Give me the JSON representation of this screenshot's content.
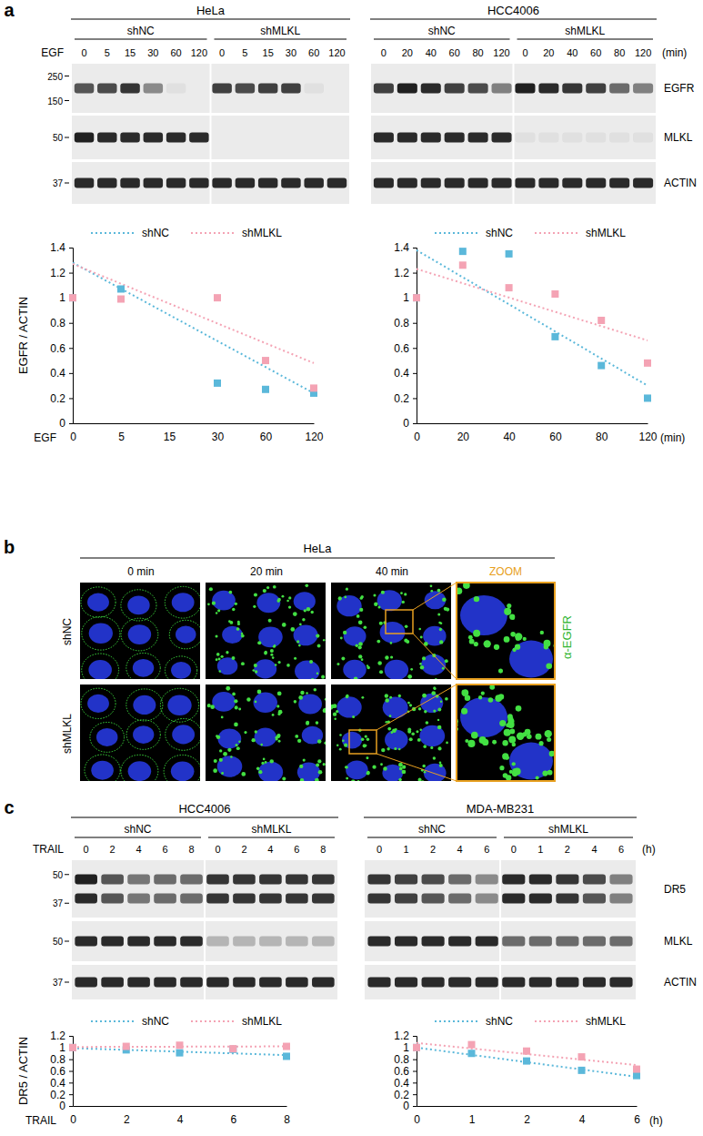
{
  "chart_data": [
    {
      "type": "scatter",
      "categories": [
        "0",
        "5",
        "15",
        "30",
        "60",
        "120"
      ],
      "x_label_start": "EGF",
      "ylabel": "EGFR / ACTIN",
      "ylim": [
        0,
        1.4
      ],
      "yticks": [
        0,
        0.2,
        0.4,
        0.6,
        0.8,
        1,
        1.2,
        1.4
      ],
      "legend": "top",
      "series": [
        {
          "name": "shNC",
          "color": "#5bb8da",
          "marker": "square",
          "line_style": "dotted",
          "values": [
            1,
            1.07,
            null,
            0.32,
            0.27,
            0.24
          ],
          "trend": [
            1.28,
            0.24
          ]
        },
        {
          "name": "shMLKL",
          "color": "#f4a3b4",
          "marker": "square",
          "line_style": "dotted",
          "values": [
            1,
            0.99,
            null,
            1,
            0.5,
            0.28
          ],
          "trend": [
            1.27,
            0.48
          ]
        }
      ]
    },
    {
      "type": "scatter",
      "categories": [
        "0",
        "20",
        "40",
        "60",
        "80",
        "120"
      ],
      "x_label_end": "(min)",
      "ylim": [
        0,
        1.4
      ],
      "yticks": [
        0,
        0.2,
        0.4,
        0.6,
        0.8,
        1,
        1.2,
        1.4
      ],
      "legend": "top",
      "series": [
        {
          "name": "shNC",
          "color": "#5bb8da",
          "marker": "square",
          "line_style": "dotted",
          "values": [
            1,
            1.37,
            1.35,
            0.69,
            0.46,
            0.2
          ],
          "trend": [
            1.38,
            0.3
          ]
        },
        {
          "name": "shMLKL",
          "color": "#f4a3b4",
          "marker": "square",
          "line_style": "dotted",
          "values": [
            1,
            1.26,
            1.08,
            1.03,
            0.82,
            0.48
          ],
          "trend": [
            1.23,
            0.66
          ]
        }
      ]
    },
    {
      "type": "scatter",
      "categories": [
        "0",
        "2",
        "4",
        "6",
        "8"
      ],
      "x_label_start": "TRAIL",
      "ylabel": "DR5 / ACTIN",
      "ylim": [
        0,
        1.2
      ],
      "yticks": [
        0,
        0.2,
        0.4,
        0.6,
        0.8,
        1,
        1.2
      ],
      "legend": "top",
      "series": [
        {
          "name": "shNC",
          "color": "#5bb8da",
          "marker": "square",
          "line_style": "dotted",
          "values": [
            1,
            0.96,
            0.91,
            0.97,
            0.85
          ],
          "trend": [
            0.99,
            0.87
          ]
        },
        {
          "name": "shMLKL",
          "color": "#f4a3b4",
          "marker": "square",
          "line_style": "dotted",
          "values": [
            1,
            1.02,
            1.04,
            0.98,
            1.02
          ],
          "trend": [
            1.01,
            1.02
          ]
        }
      ]
    },
    {
      "type": "scatter",
      "categories": [
        "0",
        "1",
        "2",
        "4",
        "6"
      ],
      "x_label_end": "(h)",
      "ylim": [
        0,
        1.2
      ],
      "yticks": [
        0,
        0.2,
        0.4,
        0.6,
        0.8,
        1,
        1.2
      ],
      "legend": "top",
      "series": [
        {
          "name": "shNC",
          "color": "#5bb8da",
          "marker": "square",
          "line_style": "dotted",
          "values": [
            1,
            0.9,
            0.77,
            0.61,
            0.52
          ],
          "trend": [
            1.0,
            0.5
          ]
        },
        {
          "name": "shMLKL",
          "color": "#f4a3b4",
          "marker": "square",
          "line_style": "dotted",
          "values": [
            1,
            1.05,
            0.94,
            0.84,
            0.63
          ],
          "trend": [
            1.08,
            0.7
          ]
        }
      ]
    }
  ],
  "panel_a": {
    "label": "a",
    "treatment": "EGF",
    "unit": "(min)",
    "proteins": [
      "EGFR",
      "MLKL",
      "ACTIN"
    ],
    "markers": [
      [
        250,
        150
      ],
      [
        50
      ],
      [
        37
      ]
    ],
    "lines": [
      {
        "name": "HeLa",
        "groups": [
          "shNC",
          "shMLKL"
        ],
        "times": [
          0,
          5,
          15,
          30,
          60,
          120
        ],
        "bands": [
          [
            0.7,
            0.75,
            0.85,
            0.45,
            0.05,
            0,
            0.8,
            0.75,
            0.8,
            0.8,
            0.05,
            0
          ],
          [
            0.95,
            0.9,
            0.9,
            0.9,
            0.9,
            0.9,
            0,
            0,
            0,
            0,
            0,
            0
          ],
          [
            0.9,
            0.9,
            0.9,
            0.9,
            0.9,
            0.9,
            0.9,
            0.9,
            0.9,
            0.9,
            0.9,
            0.9
          ]
        ]
      },
      {
        "name": "HCC4006",
        "groups": [
          "shNC",
          "shMLKL"
        ],
        "times": [
          0,
          20,
          40,
          60,
          80,
          120
        ],
        "bands": [
          [
            0.8,
            0.95,
            0.9,
            0.8,
            0.75,
            0.5,
            0.95,
            0.9,
            0.85,
            0.8,
            0.6,
            0.5
          ],
          [
            0.9,
            0.9,
            0.9,
            0.9,
            0.9,
            0.9,
            0.05,
            0.05,
            0.05,
            0.05,
            0.05,
            0.05
          ],
          [
            0.9,
            0.9,
            0.9,
            0.9,
            0.9,
            0.9,
            0.9,
            0.9,
            0.9,
            0.9,
            0.9,
            0.9
          ]
        ]
      }
    ]
  },
  "panel_b": {
    "label": "b",
    "cell_line": "HeLa",
    "times": [
      "0 min",
      "20 min",
      "40 min"
    ],
    "zoom": "ZOOM",
    "rows": [
      "shNC",
      "shMLKL"
    ],
    "stain": "α-EGFR"
  },
  "panel_c": {
    "label": "c",
    "treatment": "TRAIL",
    "unit": "(h)",
    "proteins": [
      "DR5",
      "MLKL",
      "ACTIN"
    ],
    "markers": [
      [
        50,
        37
      ],
      [
        50
      ],
      [
        37
      ]
    ],
    "lines": [
      {
        "name": "HCC4006",
        "groups": [
          "shNC",
          "shMLKL"
        ],
        "times": [
          0,
          2,
          4,
          6,
          8
        ],
        "bands": [
          [
            [
              0.95,
              0.9
            ],
            [
              0.7,
              0.7
            ],
            [
              0.55,
              0.55
            ],
            [
              0.6,
              0.6
            ],
            [
              0.6,
              0.6
            ],
            [
              0.85,
              0.85
            ],
            [
              0.85,
              0.85
            ],
            [
              0.85,
              0.85
            ],
            [
              0.85,
              0.85
            ],
            [
              0.85,
              0.85
            ]
          ],
          [
            0.9,
            0.9,
            0.9,
            0.9,
            0.9,
            0.25,
            0.25,
            0.25,
            0.25,
            0.25
          ],
          [
            0.9,
            0.9,
            0.9,
            0.9,
            0.9,
            0.9,
            0.9,
            0.9,
            0.9,
            0.9
          ]
        ]
      },
      {
        "name": "MDA-MB231",
        "groups": [
          "shNC",
          "shMLKL"
        ],
        "times": [
          0,
          1,
          2,
          4,
          6
        ],
        "bands": [
          [
            [
              0.85,
              0.85
            ],
            [
              0.8,
              0.8
            ],
            [
              0.75,
              0.7
            ],
            [
              0.6,
              0.6
            ],
            [
              0.45,
              0.45
            ],
            [
              0.9,
              0.9
            ],
            [
              0.9,
              0.9
            ],
            [
              0.85,
              0.85
            ],
            [
              0.75,
              0.7
            ],
            [
              0.5,
              0.5
            ]
          ],
          [
            0.9,
            0.9,
            0.9,
            0.9,
            0.9,
            0.6,
            0.6,
            0.6,
            0.6,
            0.6
          ],
          [
            0.9,
            0.9,
            0.9,
            0.9,
            0.9,
            0.9,
            0.9,
            0.9,
            0.9,
            0.9
          ]
        ]
      }
    ]
  }
}
